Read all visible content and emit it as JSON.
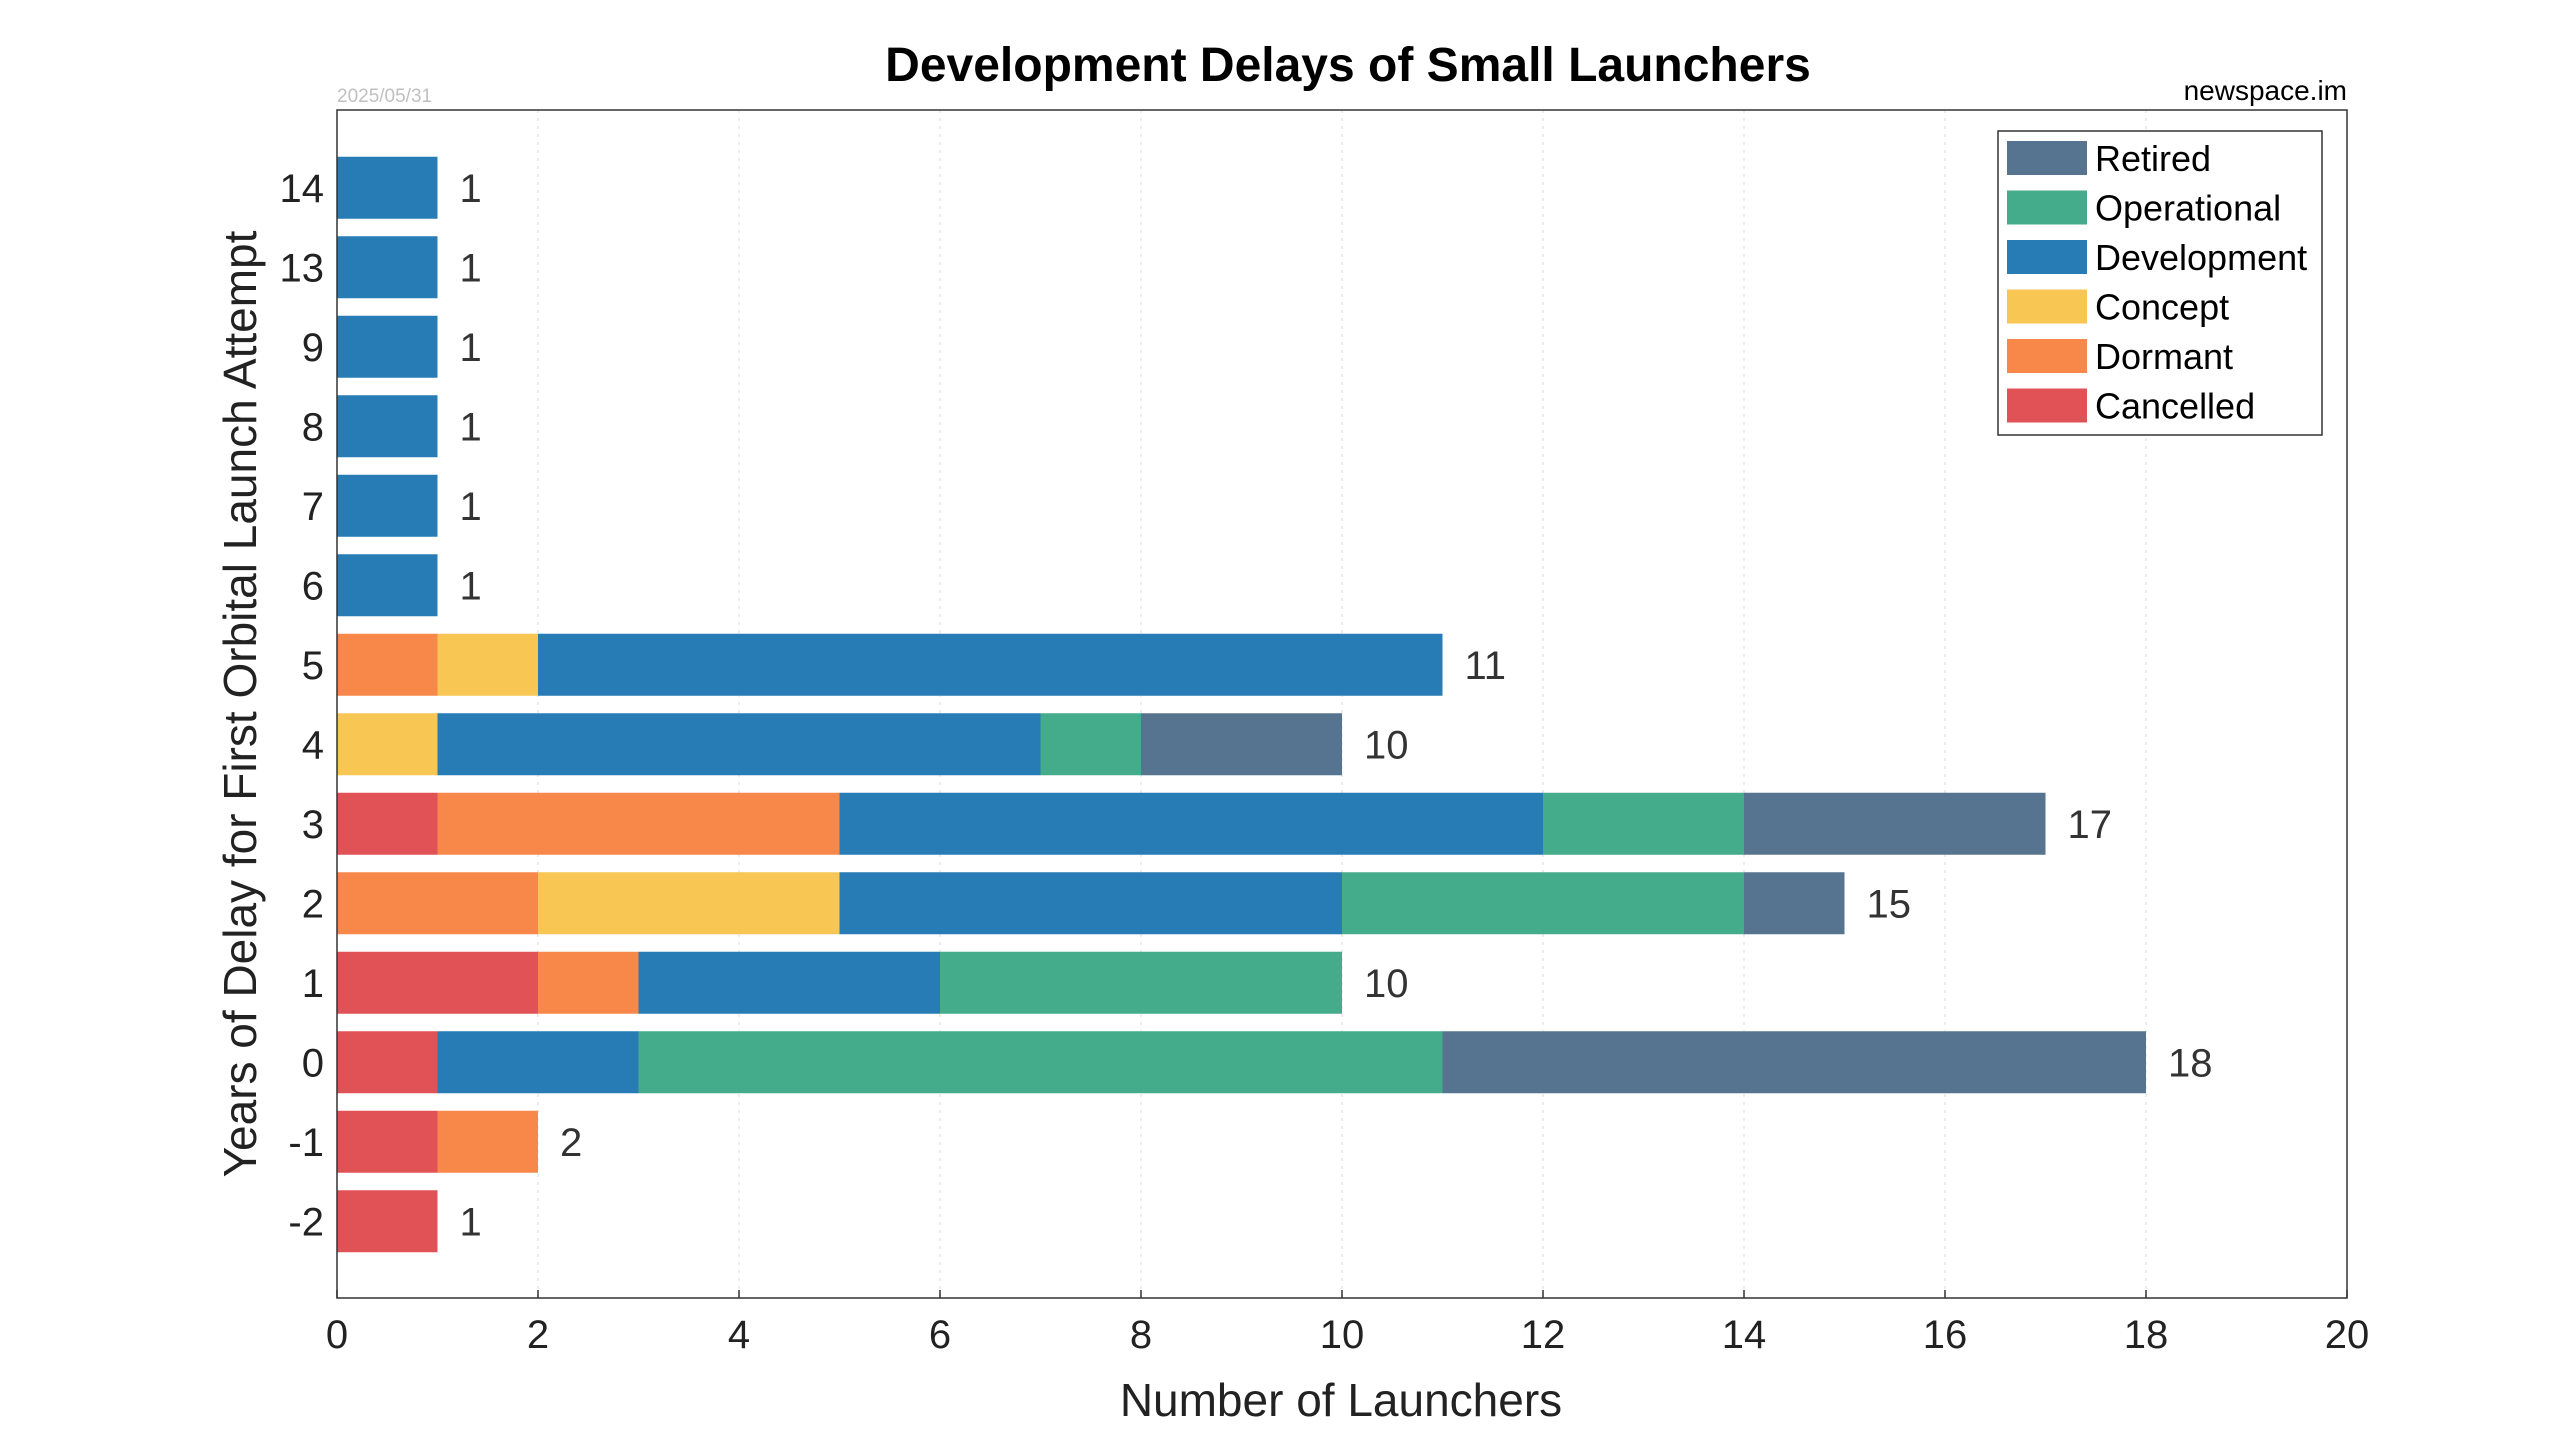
{
  "chart_data": {
    "type": "bar",
    "orientation": "horizontal",
    "stacked": true,
    "title": "Development Delays of Small Launchers",
    "date_stamp": "2025/05/31",
    "source": "newspace.im",
    "xlabel": "Number of Launchers",
    "ylabel": "Years of Delay for First Orbital Launch Attempt",
    "xlim": [
      0,
      20
    ],
    "xticks": [
      "0",
      "2",
      "4",
      "6",
      "8",
      "10",
      "12",
      "14",
      "16",
      "18",
      "20"
    ],
    "grid": "vertical dotted",
    "legend_position": "top-right",
    "categories": [
      "-2",
      "-1",
      "0",
      "1",
      "2",
      "3",
      "4",
      "5",
      "6",
      "7",
      "8",
      "9",
      "13",
      "14"
    ],
    "series": [
      {
        "name": "Cancelled",
        "color": "#e15257",
        "values": [
          1,
          1,
          1,
          2,
          0,
          1,
          0,
          0,
          0,
          0,
          0,
          0,
          0,
          0
        ]
      },
      {
        "name": "Dormant",
        "color": "#f8874a",
        "values": [
          0,
          1,
          0,
          1,
          2,
          4,
          0,
          1,
          0,
          0,
          0,
          0,
          0,
          0
        ]
      },
      {
        "name": "Concept",
        "color": "#f8c653",
        "values": [
          0,
          0,
          0,
          0,
          3,
          0,
          1,
          1,
          0,
          0,
          0,
          0,
          0,
          0
        ]
      },
      {
        "name": "Development",
        "color": "#277cb6",
        "values": [
          0,
          0,
          2,
          3,
          5,
          7,
          6,
          9,
          1,
          1,
          1,
          1,
          1,
          1
        ]
      },
      {
        "name": "Operational",
        "color": "#44ab8b",
        "values": [
          0,
          0,
          8,
          4,
          4,
          2,
          1,
          0,
          0,
          0,
          0,
          0,
          0,
          0
        ]
      },
      {
        "name": "Retired",
        "color": "#56738f",
        "values": [
          0,
          0,
          7,
          0,
          1,
          3,
          2,
          0,
          0,
          0,
          0,
          0,
          0,
          0
        ]
      }
    ],
    "totals": [
      1,
      2,
      18,
      10,
      15,
      17,
      10,
      11,
      1,
      1,
      1,
      1,
      1,
      1
    ],
    "total_labels": [
      "1",
      "2",
      "18",
      "10",
      "15",
      "17",
      "10",
      "11",
      "1",
      "1",
      "1",
      "1",
      "1",
      "1"
    ],
    "legend_order": [
      "Retired",
      "Operational",
      "Development",
      "Concept",
      "Dormant",
      "Cancelled"
    ]
  }
}
